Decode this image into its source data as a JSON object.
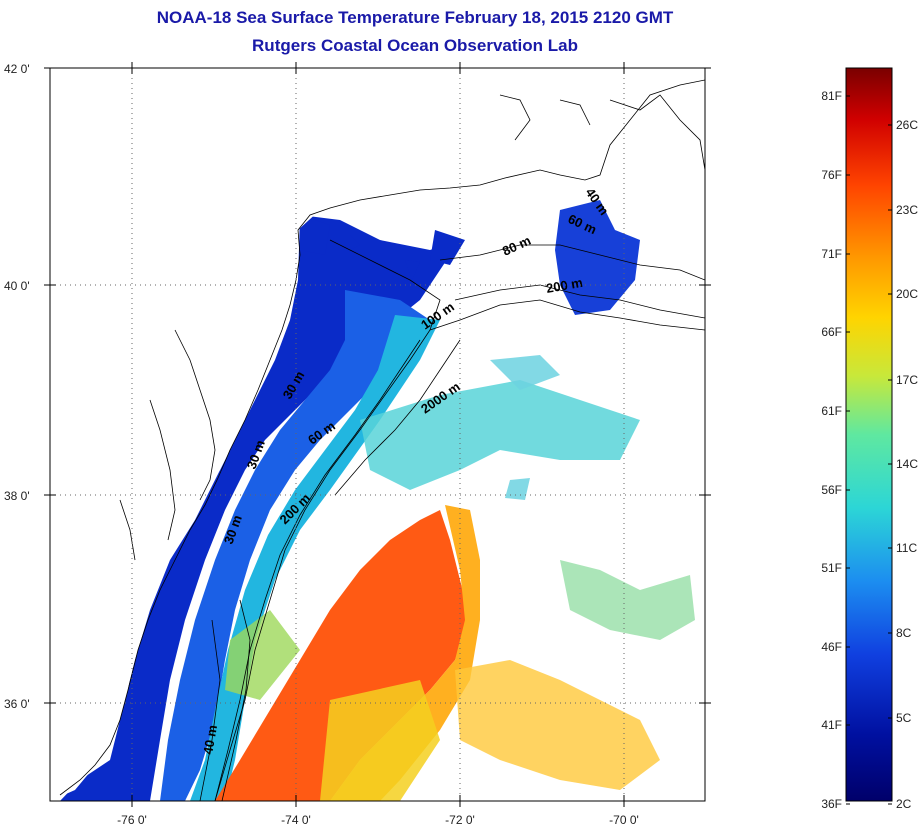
{
  "title": {
    "line1": "NOAA-18 Sea Surface Temperature February 18, 2015 2120 GMT",
    "line2": "Rutgers Coastal Ocean Observation Lab"
  },
  "axes": {
    "lat_ticks": [
      {
        "value": 42,
        "label": "42 0'"
      },
      {
        "value": 40,
        "label": "40 0'"
      },
      {
        "value": 38,
        "label": "38 0'"
      },
      {
        "value": 36,
        "label": "36 0'"
      }
    ],
    "lon_ticks": [
      {
        "value": -76,
        "label": "-76 0'"
      },
      {
        "value": -74,
        "label": "-74 0'"
      },
      {
        "value": -72,
        "label": "-72 0'"
      },
      {
        "value": -70,
        "label": "-70 0'"
      }
    ],
    "grid": "dotted"
  },
  "depth_labels": [
    "40 m",
    "60 m",
    "80 m",
    "200 m",
    "100 m",
    "2000 m",
    "60 m",
    "30 m",
    "200 m",
    "30 m",
    "40 m",
    "30 m"
  ],
  "colorbar": {
    "fahrenheit": [
      "81F",
      "76F",
      "71F",
      "66F",
      "61F",
      "56F",
      "51F",
      "46F",
      "41F",
      "36F"
    ],
    "celsius": [
      "26C",
      "23C",
      "20C",
      "17C",
      "14C",
      "11C",
      "8C",
      "5C",
      "2C"
    ],
    "colors": [
      "#7a0000",
      "#d00000",
      "#ff4400",
      "#ff9900",
      "#ffd400",
      "#c8e83a",
      "#5fe8a0",
      "#2cd6d6",
      "#1c8ef0",
      "#1040e0",
      "#0010a0",
      "#00006a"
    ]
  }
}
